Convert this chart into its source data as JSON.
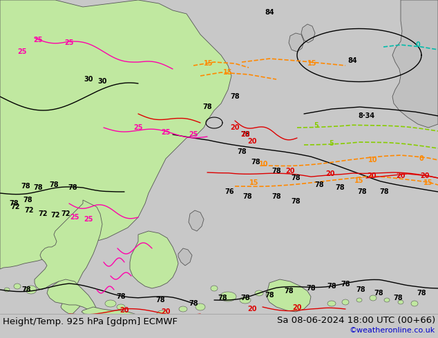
{
  "title_left": "Height/Temp. 925 hPa [gdpm] ECMWF",
  "title_right": "Sa 08-06-2024 18:00 UTC (00+66)",
  "credit": "©weatheronline.co.uk",
  "bg_color": "#c8c8c8",
  "sea_color": "#d4d4d4",
  "land_green_color": "#c0e8a0",
  "land_gray_color": "#c0c0c0",
  "fig_width": 6.34,
  "fig_height": 4.9,
  "dpi": 100,
  "title_fontsize": 9.5,
  "credit_fontsize": 8,
  "credit_color": "#0000cc"
}
